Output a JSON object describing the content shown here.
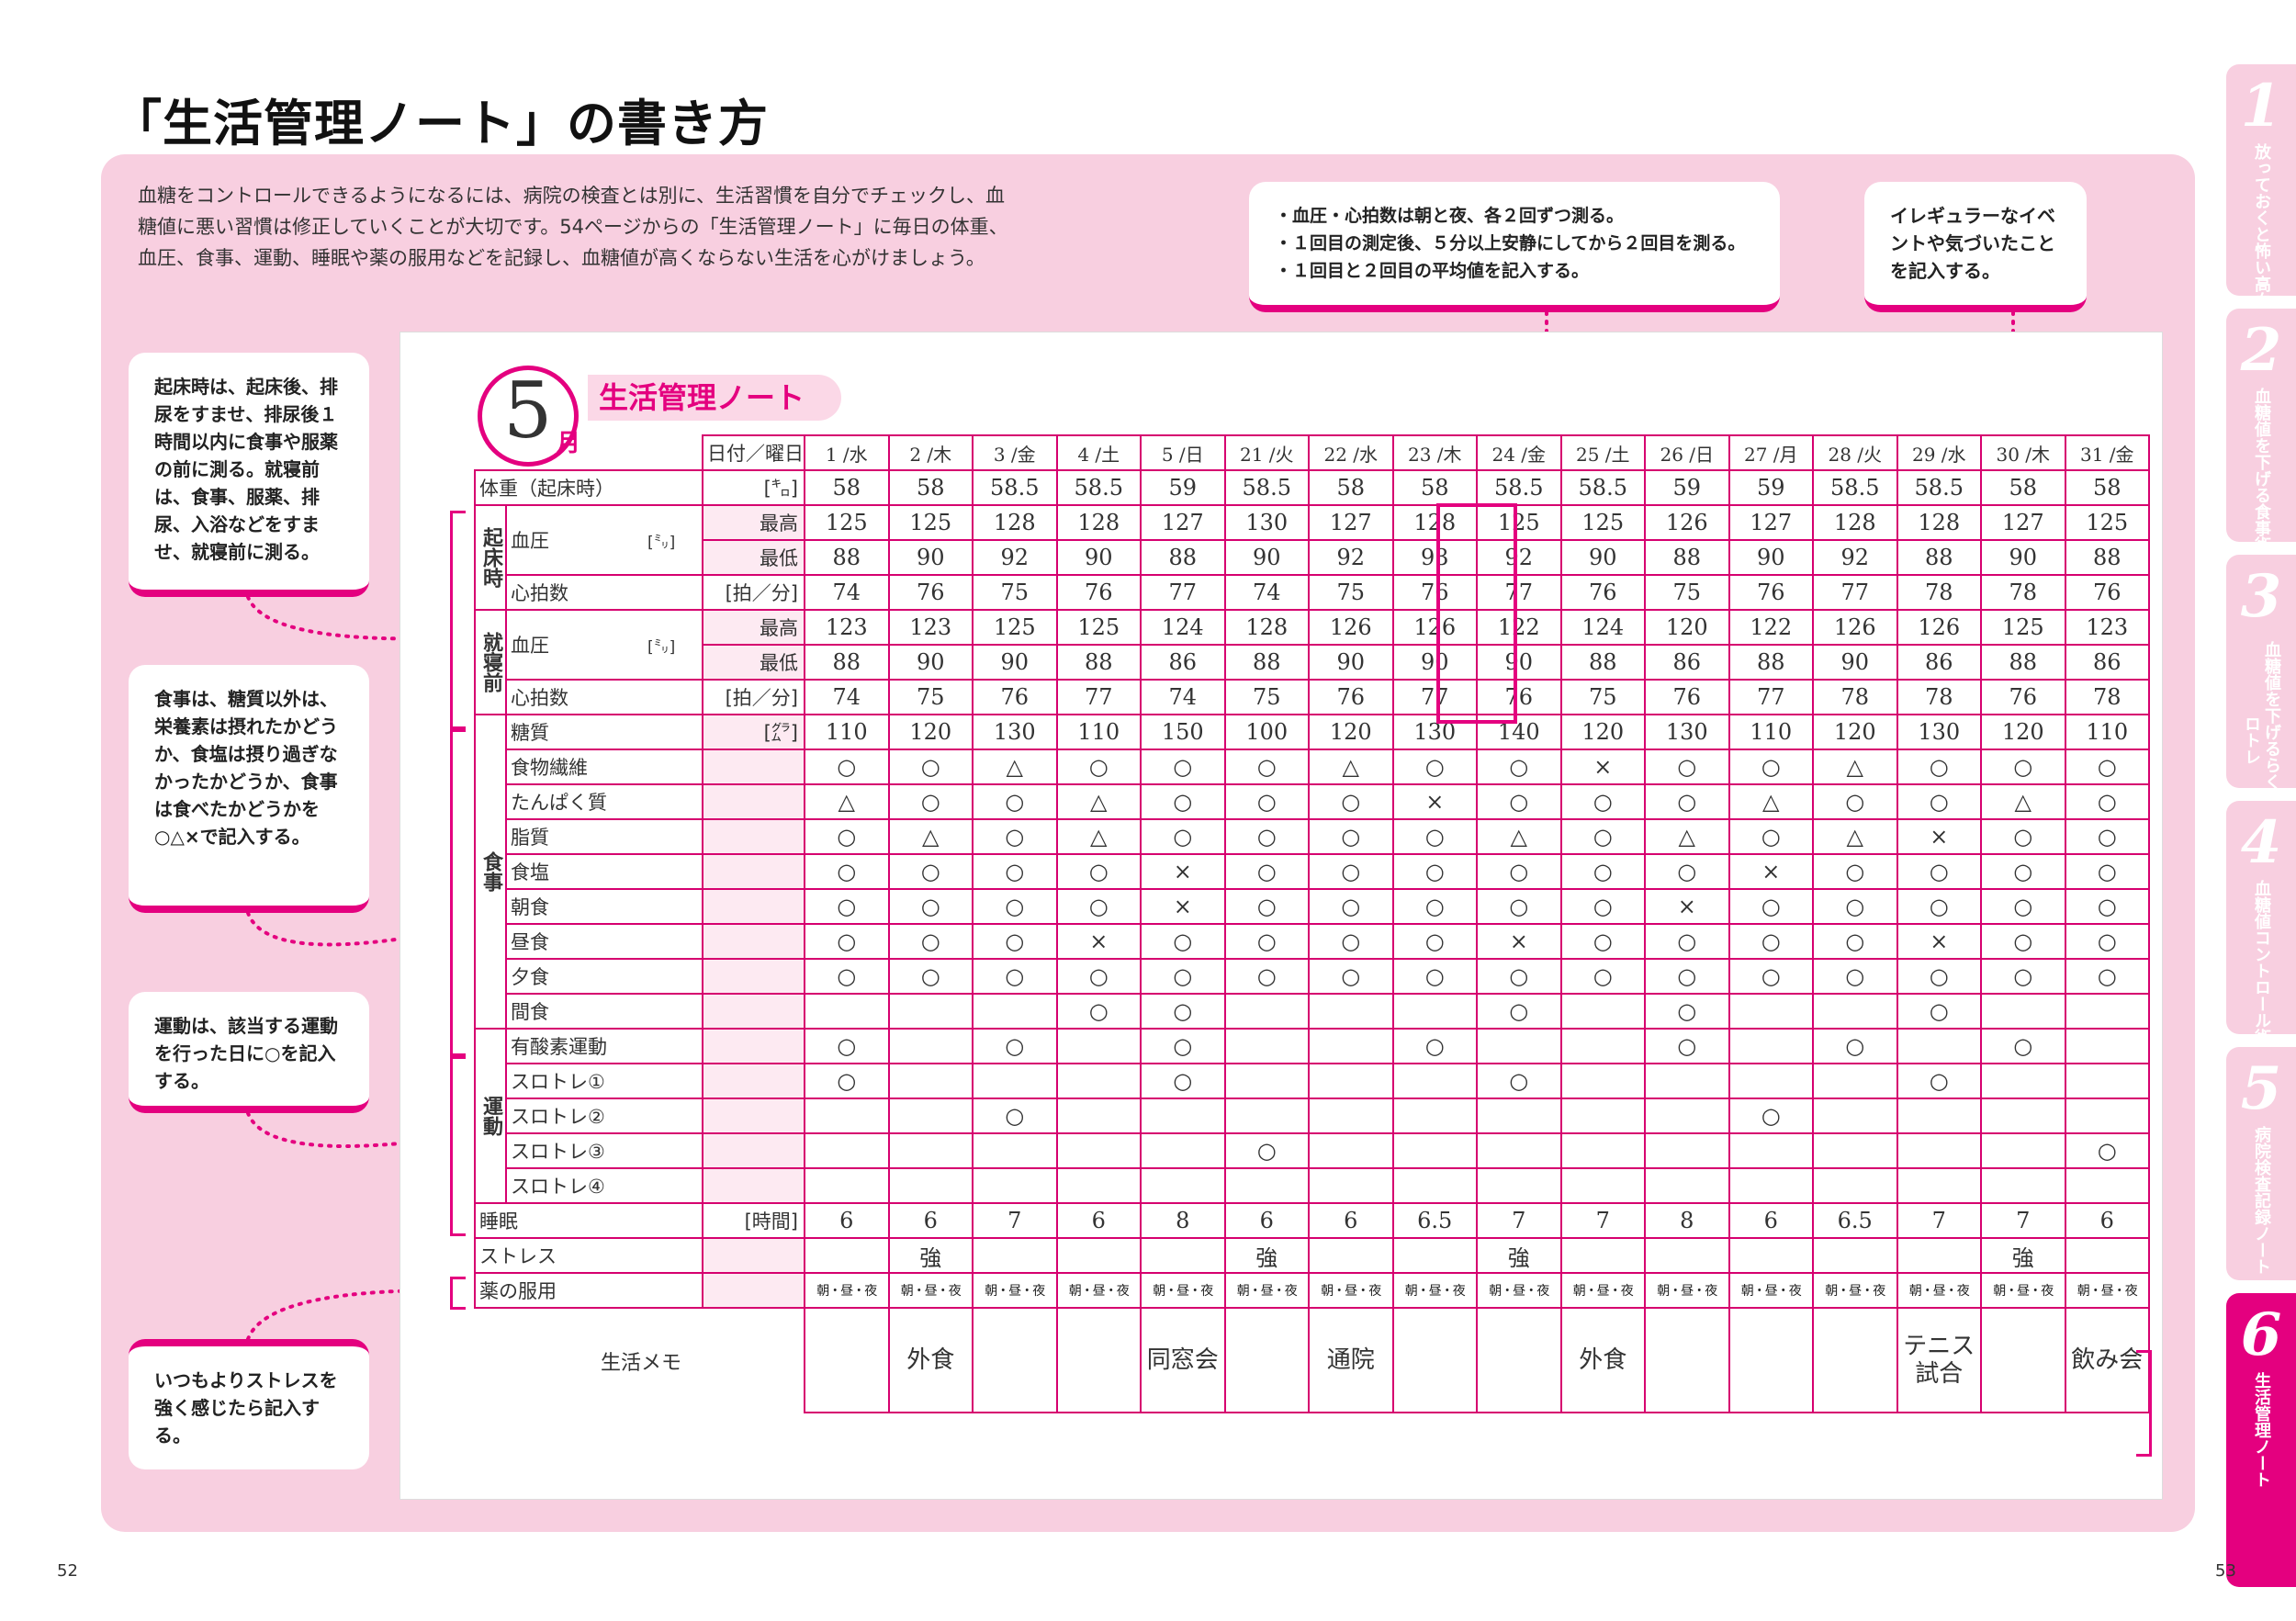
{
  "title": "「生活管理ノート」の書き方",
  "intro": "血糖をコントロールできるようになるには、病院の検査とは別に、生活習慣を自分でチェックし、血糖値に悪い習慣は修正していくことが大切です。54ページからの「生活管理ノート」に毎日の体重、血圧、食事、運動、睡眠や薬の服用などを記録し、血糖値が高くならない生活を心がけましょう。",
  "callouts": {
    "bp_top": "・血圧・心拍数は朝と夜、各２回ずつ測る。\n・１回目の測定後、５分以上安静にしてから２回目を測る。\n・１回目と２回目の平均値を記入する。",
    "irregular": "イレギュラーなイベントや気づいたことを記入する。",
    "wake": "起床時は、起床後、排尿をすませ、排尿後１時間以内に食事や服薬の前に測る。就寝前は、食事、服薬、排尿、入浴などをすませ、就寝前に測る。",
    "meal": "食事は、糖質以外は、栄養素は摂れたかどうか、食塩は摂り過ぎなかったかどうか、食事は食べたかどうかを○△×で記入する。",
    "exercise": "運動は、該当する運動を行った日に○を記入する。",
    "stress": "いつもよりストレスを強く感じたら記入する。"
  },
  "tabs": [
    {
      "num": "1",
      "label": "放っておくと怖い高血糖"
    },
    {
      "num": "2",
      "label": "血糖値を下げる食事術"
    },
    {
      "num": "3",
      "label": "血糖値を下げるらくらくスロトレ"
    },
    {
      "num": "4",
      "label": "血糖値コントロール術"
    },
    {
      "num": "5",
      "label": "病院検査記録ノート"
    },
    {
      "num": "6",
      "label": "生活管理ノート"
    }
  ],
  "page_left": "52",
  "page_right": "53",
  "note": {
    "month": "5",
    "month_unit": "月",
    "title": "生活管理ノート",
    "date_label": "日付／曜日",
    "dates": [
      "1 /水",
      "2 /木",
      "3 /金",
      "4 /土",
      "5 /日",
      "21 /火",
      "22 /水",
      "23 /木",
      "24 /金",
      "25 /土",
      "26 /日",
      "27 /月",
      "28 /火",
      "29 /水",
      "30 /木",
      "31 /金"
    ],
    "labels": {
      "weight": "体重（起床時）",
      "weight_unit": "[㌔]",
      "wake_cat": "起床時",
      "sleep_cat": "就寝前",
      "bp": "血圧",
      "bp_unit": "[㍉]",
      "high": "最高",
      "low": "最低",
      "pulse": "心拍数",
      "pulse_unit": "[拍／分]",
      "meal_cat": "食事",
      "ex_cat": "運動",
      "carb": "糖質",
      "carb_unit": "[㌘]",
      "sleep": "睡眠",
      "sleep_unit": "[時間]",
      "stress": "ストレス",
      "medicine": "薬の服用",
      "memo": "生活メモ"
    },
    "meal_items": [
      "食物繊維",
      "たんぱく質",
      "脂質",
      "食塩",
      "朝食",
      "昼食",
      "夕食",
      "間食"
    ],
    "exercise_items": [
      "有酸素運動",
      "スロトレ①",
      "スロトレ②",
      "スロトレ③",
      "スロトレ④"
    ],
    "weight": [
      "58",
      "58",
      "58.5",
      "58.5",
      "59",
      "58.5",
      "58",
      "58",
      "58.5",
      "58.5",
      "59",
      "59",
      "58.5",
      "58.5",
      "58",
      "58"
    ],
    "wake_high": [
      "125",
      "125",
      "128",
      "128",
      "127",
      "130",
      "127",
      "128",
      "125",
      "125",
      "126",
      "127",
      "128",
      "128",
      "127",
      "125"
    ],
    "wake_low": [
      "88",
      "90",
      "92",
      "90",
      "88",
      "90",
      "92",
      "93",
      "92",
      "90",
      "88",
      "90",
      "92",
      "88",
      "90",
      "88"
    ],
    "wake_pulse": [
      "74",
      "76",
      "75",
      "76",
      "77",
      "74",
      "75",
      "76",
      "77",
      "76",
      "75",
      "76",
      "77",
      "78",
      "78",
      "76"
    ],
    "sleep_high": [
      "123",
      "123",
      "125",
      "125",
      "124",
      "128",
      "126",
      "126",
      "122",
      "124",
      "120",
      "122",
      "126",
      "126",
      "125",
      "123"
    ],
    "sleep_low": [
      "88",
      "90",
      "90",
      "88",
      "86",
      "88",
      "90",
      "90",
      "90",
      "88",
      "86",
      "88",
      "90",
      "86",
      "88",
      "86"
    ],
    "sleep_pulse": [
      "74",
      "75",
      "76",
      "77",
      "74",
      "75",
      "76",
      "77",
      "76",
      "75",
      "76",
      "77",
      "78",
      "78",
      "76",
      "78"
    ],
    "carb": [
      "110",
      "120",
      "130",
      "110",
      "150",
      "100",
      "120",
      "130",
      "140",
      "120",
      "130",
      "110",
      "120",
      "130",
      "120",
      "110"
    ],
    "meals": [
      [
        "○",
        "○",
        "△",
        "○",
        "○",
        "○",
        "△",
        "○",
        "○",
        "×",
        "○",
        "○",
        "△",
        "○",
        "○",
        "○"
      ],
      [
        "△",
        "○",
        "○",
        "△",
        "○",
        "○",
        "○",
        "×",
        "○",
        "○",
        "○",
        "△",
        "○",
        "○",
        "△",
        "○"
      ],
      [
        "○",
        "△",
        "○",
        "△",
        "○",
        "○",
        "○",
        "○",
        "△",
        "○",
        "△",
        "○",
        "△",
        "×",
        "○",
        "○"
      ],
      [
        "○",
        "○",
        "○",
        "○",
        "×",
        "○",
        "○",
        "○",
        "○",
        "○",
        "○",
        "×",
        "○",
        "○",
        "○",
        "○"
      ],
      [
        "○",
        "○",
        "○",
        "○",
        "×",
        "○",
        "○",
        "○",
        "○",
        "○",
        "×",
        "○",
        "○",
        "○",
        "○",
        "○"
      ],
      [
        "○",
        "○",
        "○",
        "×",
        "○",
        "○",
        "○",
        "○",
        "×",
        "○",
        "○",
        "○",
        "○",
        "×",
        "○",
        "○"
      ],
      [
        "○",
        "○",
        "○",
        "○",
        "○",
        "○",
        "○",
        "○",
        "○",
        "○",
        "○",
        "○",
        "○",
        "○",
        "○",
        "○"
      ],
      [
        "",
        "",
        "",
        "○",
        "○",
        "",
        "",
        "",
        "○",
        "",
        "○",
        "",
        "",
        "○",
        "",
        ""
      ]
    ],
    "exercise": [
      [
        "○",
        "",
        "○",
        "",
        "○",
        "",
        "",
        "○",
        "",
        "",
        "○",
        "",
        "○",
        "",
        "○",
        ""
      ],
      [
        "○",
        "",
        "",
        "",
        "○",
        "",
        "",
        "",
        "○",
        "",
        "",
        "",
        "",
        "○",
        "",
        ""
      ],
      [
        "",
        "",
        "○",
        "",
        "",
        "",
        "",
        "",
        "",
        "",
        "",
        "○",
        "",
        "",
        "",
        ""
      ],
      [
        "",
        "",
        "",
        "",
        "",
        "○",
        "",
        "",
        "",
        "",
        "",
        "",
        "",
        "",
        "",
        "○"
      ],
      [
        "",
        "",
        "",
        "",
        "",
        "",
        "",
        "",
        "",
        "",
        "",
        "",
        "",
        "",
        "",
        ""
      ]
    ],
    "sleep_hours": [
      "6",
      "6",
      "7",
      "6",
      "8",
      "6",
      "6",
      "6.5",
      "7",
      "7",
      "8",
      "6",
      "6.5",
      "7",
      "7",
      "6"
    ],
    "stress_marks": [
      "",
      "強",
      "",
      "",
      "",
      "強",
      "",
      "",
      "強",
      "",
      "",
      "",
      "",
      "",
      "強",
      ""
    ],
    "medicine": [
      "朝・昼・夜",
      "朝・昼・夜",
      "朝・昼・夜",
      "朝・昼・夜",
      "朝・昼・夜",
      "朝・昼・夜",
      "朝・昼・夜",
      "朝・昼・夜",
      "朝・昼・夜",
      "朝・昼・夜",
      "朝・昼・夜",
      "朝・昼・夜",
      "朝・昼・夜",
      "朝・昼・夜",
      "朝・昼・夜",
      "朝・昼・夜"
    ],
    "memo": [
      "",
      "外食",
      "",
      "",
      "同窓会",
      "",
      "通院",
      "",
      "",
      "外食",
      "",
      "",
      "",
      "テニス試合",
      "",
      "飲み会"
    ]
  },
  "colors": {
    "accent": "#e4007f",
    "panel": "#f8cfe0",
    "subcell": "#fdeaf2"
  }
}
